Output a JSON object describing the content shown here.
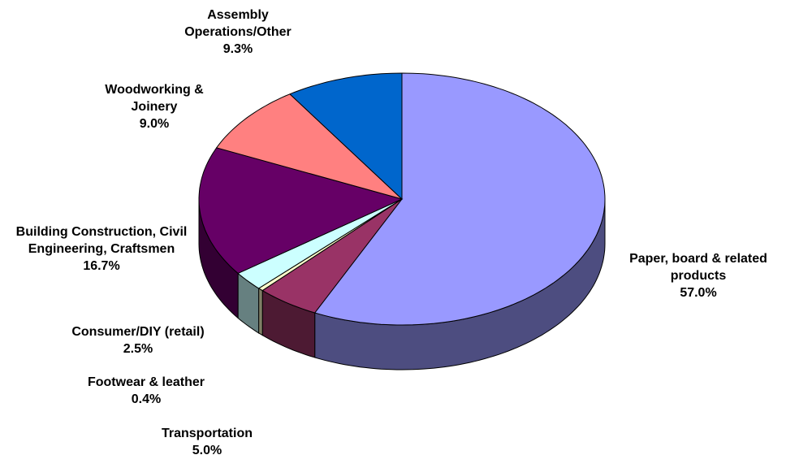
{
  "chart_data": {
    "type": "pie",
    "three_d": true,
    "categories": [
      "Paper, board & related products",
      "Transportation",
      "Footwear & leather",
      "Consumer/DIY (retail)",
      "Building Construction, Civil Engineering, Craftsmen",
      "Woodworking & Joinery",
      "Assembly Operations/Other"
    ],
    "values": [
      57.0,
      5.0,
      0.4,
      2.5,
      16.7,
      9.0,
      9.3
    ],
    "value_labels": [
      "57.0%",
      "5.0%",
      "0.4%",
      "2.5%",
      "16.7%",
      "9.0%",
      "9.3%"
    ],
    "colors": [
      "#9999ff",
      "#993366",
      "#ffffcc",
      "#ccffff",
      "#660066",
      "#ff8080",
      "#0066cc"
    ]
  }
}
